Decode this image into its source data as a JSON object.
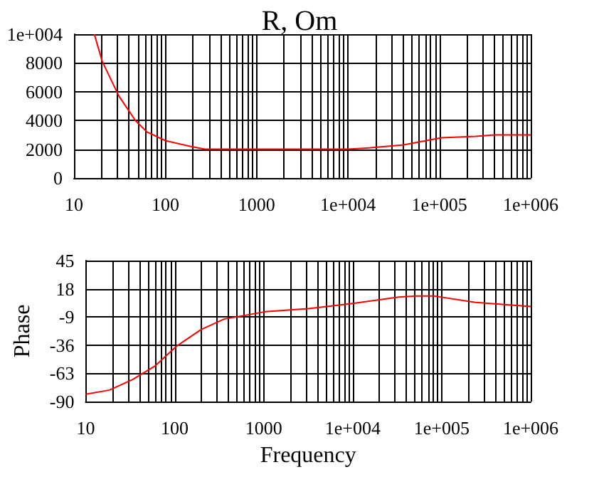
{
  "chart_data": [
    {
      "type": "line",
      "title": "R, Om",
      "log": "x",
      "grid": true,
      "marker": "none",
      "xlim": [
        10,
        1000000
      ],
      "xticks": [
        10,
        {
          "value": 20,
          "label": null
        },
        {
          "value": 30,
          "label": null
        },
        {
          "value": 40,
          "label": null
        },
        {
          "value": 50,
          "label": null
        },
        {
          "value": 60,
          "label": null
        },
        {
          "value": 70,
          "label": null
        },
        {
          "value": 80,
          "label": null
        },
        {
          "value": 90,
          "label": null
        },
        100,
        {
          "value": 200,
          "label": null
        },
        {
          "value": 300,
          "label": null
        },
        {
          "value": 400,
          "label": null
        },
        {
          "value": 500,
          "label": null
        },
        {
          "value": 600,
          "label": null
        },
        {
          "value": 700,
          "label": null
        },
        {
          "value": 800,
          "label": null
        },
        {
          "value": 900,
          "label": null
        },
        1000,
        {
          "value": 2000,
          "label": null
        },
        {
          "value": 3000,
          "label": null
        },
        {
          "value": 4000,
          "label": null
        },
        {
          "value": 5000,
          "label": null
        },
        {
          "value": 6000,
          "label": null
        },
        {
          "value": 7000,
          "label": null
        },
        {
          "value": 8000,
          "label": null
        },
        {
          "value": 9000,
          "label": null
        },
        {
          "value": 10000,
          "label": "1e+004"
        },
        {
          "value": 20000,
          "label": null
        },
        {
          "value": 30000,
          "label": null
        },
        {
          "value": 40000,
          "label": null
        },
        {
          "value": 50000,
          "label": null
        },
        {
          "value": 60000,
          "label": null
        },
        {
          "value": 70000,
          "label": null
        },
        {
          "value": 80000,
          "label": null
        },
        {
          "value": 90000,
          "label": null
        },
        {
          "value": 100000,
          "label": "1e+005"
        },
        {
          "value": 200000,
          "label": null
        },
        {
          "value": 300000,
          "label": null
        },
        {
          "value": 400000,
          "label": null
        },
        {
          "value": 500000,
          "label": null
        },
        {
          "value": 600000,
          "label": null
        },
        {
          "value": 700000,
          "label": null
        },
        {
          "value": 800000,
          "label": null
        },
        {
          "value": 900000,
          "label": null
        },
        {
          "value": 1000000,
          "label": "1e+006"
        }
      ],
      "ylim": [
        0,
        10000
      ],
      "yticks": [
        0,
        2000,
        4000,
        6000,
        8000,
        {
          "value": 10000,
          "label": "1e+004"
        }
      ],
      "series": [
        {
          "color": "#ff0000",
          "x": [
            16.7,
            20.4,
            31,
            47,
            63,
            100,
            186,
            270,
            1000,
            10000,
            17600,
            40700,
            105000,
            250000,
            400000,
            1000000
          ],
          "values": [
            10000,
            8100,
            5700,
            4000,
            3200,
            2600,
            2200,
            2000,
            2000,
            2000,
            2100,
            2300,
            2800,
            2900,
            3000,
            3000
          ]
        }
      ]
    },
    {
      "type": "line",
      "ylabel": "Phase",
      "xlabel": "Frequency",
      "log": "x",
      "grid": true,
      "marker": "none",
      "xlim": [
        10,
        1000000
      ],
      "xticks": [
        10,
        {
          "value": 20,
          "label": null
        },
        {
          "value": 30,
          "label": null
        },
        {
          "value": 40,
          "label": null
        },
        {
          "value": 50,
          "label": null
        },
        {
          "value": 60,
          "label": null
        },
        {
          "value": 70,
          "label": null
        },
        {
          "value": 80,
          "label": null
        },
        {
          "value": 90,
          "label": null
        },
        100,
        {
          "value": 200,
          "label": null
        },
        {
          "value": 300,
          "label": null
        },
        {
          "value": 400,
          "label": null
        },
        {
          "value": 500,
          "label": null
        },
        {
          "value": 600,
          "label": null
        },
        {
          "value": 700,
          "label": null
        },
        {
          "value": 800,
          "label": null
        },
        {
          "value": 900,
          "label": null
        },
        1000,
        {
          "value": 2000,
          "label": null
        },
        {
          "value": 3000,
          "label": null
        },
        {
          "value": 4000,
          "label": null
        },
        {
          "value": 5000,
          "label": null
        },
        {
          "value": 6000,
          "label": null
        },
        {
          "value": 7000,
          "label": null
        },
        {
          "value": 8000,
          "label": null
        },
        {
          "value": 9000,
          "label": null
        },
        {
          "value": 10000,
          "label": "1e+004"
        },
        {
          "value": 20000,
          "label": null
        },
        {
          "value": 30000,
          "label": null
        },
        {
          "value": 40000,
          "label": null
        },
        {
          "value": 50000,
          "label": null
        },
        {
          "value": 60000,
          "label": null
        },
        {
          "value": 70000,
          "label": null
        },
        {
          "value": 80000,
          "label": null
        },
        {
          "value": 90000,
          "label": null
        },
        {
          "value": 100000,
          "label": "1e+005"
        },
        {
          "value": 200000,
          "label": null
        },
        {
          "value": 300000,
          "label": null
        },
        {
          "value": 400000,
          "label": null
        },
        {
          "value": 500000,
          "label": null
        },
        {
          "value": 600000,
          "label": null
        },
        {
          "value": 700000,
          "label": null
        },
        {
          "value": 800000,
          "label": null
        },
        {
          "value": 900000,
          "label": null
        },
        {
          "value": 1000000,
          "label": "1e+006"
        }
      ],
      "ylim": [
        -90,
        45
      ],
      "yticks": [
        -90,
        -63,
        -36,
        -9,
        18,
        45
      ],
      "series": [
        {
          "color": "#ff0000",
          "x": [
            10,
            18.5,
            33.6,
            60,
            105,
            198,
            360,
            1040,
            3200,
            10000,
            33000,
            52000,
            83000,
            240000,
            1000000
          ],
          "values": [
            -83,
            -79,
            -69,
            -56,
            -37,
            -21,
            -11,
            -4,
            -1,
            4,
            10,
            11,
            11,
            5,
            1
          ]
        }
      ]
    }
  ]
}
